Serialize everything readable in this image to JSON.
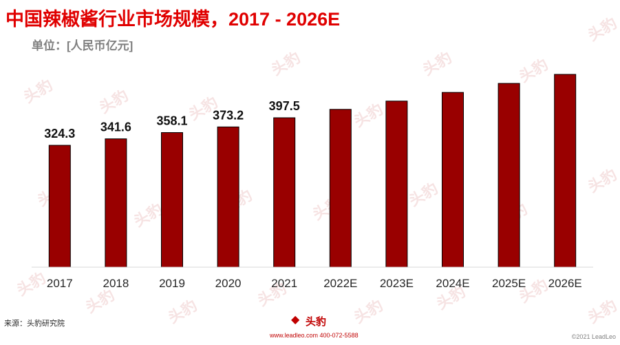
{
  "header": {
    "title": "中国辣椒酱行业市场规模，2017 - 2026E",
    "subtitle": "单位：[人民币亿元]"
  },
  "chart_data": {
    "type": "bar",
    "title": "中国辣椒酱行业市场规模，2017 - 2026E",
    "subtitle": "单位：[人民币亿元]",
    "categories": [
      "2017",
      "2018",
      "2019",
      "2020",
      "2021",
      "2022E",
      "2023E",
      "2024E",
      "2025E",
      "2026E"
    ],
    "values": [
      324.3,
      341.6,
      358.1,
      373.2,
      397.5,
      420,
      442,
      465,
      489,
      513
    ],
    "data_labels": [
      "324.3",
      "341.6",
      "358.1",
      "373.2",
      "397.5",
      "",
      "",
      "",
      "",
      ""
    ],
    "bar_color": "#990000",
    "bar_edge_color": "#000000",
    "ylim": [
      0,
      540
    ],
    "grid": false,
    "legend": "none"
  },
  "watermark": {
    "text": "头豹"
  },
  "footer": {
    "source": "来源：头豹研究院",
    "logo_text": "头豹",
    "website": "www.leadleo.com  400-072-5588",
    "copyright": "©2021 LeadLeo"
  }
}
